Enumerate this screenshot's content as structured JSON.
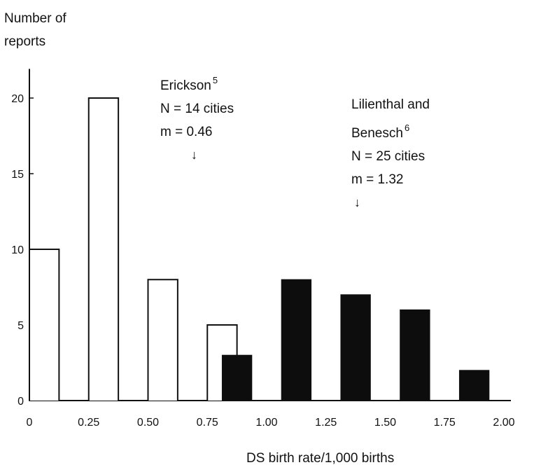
{
  "chart_data": {
    "type": "bar",
    "ylabel": "Number of reports",
    "xlabel": "DS birth rate/1,000 births",
    "ylim": [
      0,
      21
    ],
    "yticks": [
      "0",
      "5",
      "10",
      "15",
      "20"
    ],
    "xticks": [
      "0",
      "0.25",
      "0.50",
      "0.75",
      "1.00",
      "1.25",
      "1.50",
      "1.75",
      "2.00"
    ],
    "series": [
      {
        "name": "Erickson",
        "fill": "open",
        "bins": [
          {
            "x": [
              0.0,
              0.125
            ],
            "value": 10
          },
          {
            "x": [
              0.25,
              0.375
            ],
            "value": 20
          },
          {
            "x": [
              0.5,
              0.625
            ],
            "value": 8
          },
          {
            "x": [
              0.75,
              0.875
            ],
            "value": 5
          }
        ]
      },
      {
        "name": "Lilienthal and Benesch",
        "fill": "solid",
        "bins": [
          {
            "x": [
              0.8125,
              0.9375
            ],
            "value": 3
          },
          {
            "x": [
              1.0625,
              1.1875
            ],
            "value": 8
          },
          {
            "x": [
              1.3125,
              1.4375
            ],
            "value": 7
          },
          {
            "x": [
              1.5625,
              1.6875
            ],
            "value": 6
          },
          {
            "x": [
              1.8125,
              1.9375
            ],
            "value": 2
          }
        ]
      }
    ],
    "annotations": [
      {
        "author": "Erickson",
        "ref": "5",
        "n_text": "N = 14 cities",
        "m_text": "m = 0.46",
        "arrow": "↓"
      },
      {
        "author_line1": "Lilienthal and",
        "author_line2": "Benesch",
        "ref": "6",
        "n_text": "N = 25 cities",
        "m_text": "m = 1.32",
        "arrow": "↓"
      }
    ]
  },
  "colors": {
    "axis": "#111111",
    "solid_fill": "#0d0d0d",
    "open_fill": "#ffffff"
  }
}
